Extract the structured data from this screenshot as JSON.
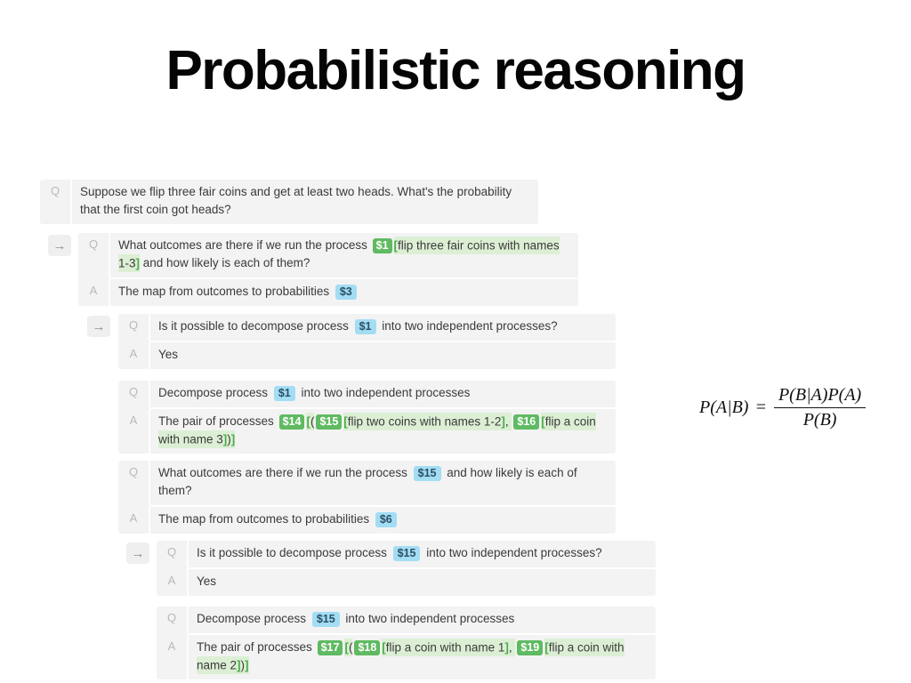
{
  "title": "Probabilistic reasoning",
  "arrow_icon": "→",
  "colors": {
    "box_background": "#f3f3f3",
    "green_badge": "#5fba61",
    "green_highlight": "#dcefd4",
    "green_bracket": "#4cae4c",
    "blue_badge": "#a3ddf4",
    "blue_badge_text": "#2b5065"
  },
  "formula": {
    "lhs": "P(A|B)",
    "equals": "=",
    "numerator": "P(B|A)P(A)",
    "denominator": "P(B)"
  },
  "qa_boxes": [
    {
      "rows": [
        {
          "label": "Q",
          "segments": [
            {
              "k": "t",
              "x": "Suppose we flip three fair coins and get at least two heads. What's the probability that the first coin got heads?"
            }
          ]
        }
      ]
    },
    {
      "rows": [
        {
          "label": "Q",
          "segments": [
            {
              "k": "t",
              "x": "What outcomes are there if we run the process "
            },
            {
              "k": "g",
              "x": "$1"
            },
            {
              "k": "gb",
              "x": "["
            },
            {
              "k": "h",
              "x": "flip three fair coins with names 1-3"
            },
            {
              "k": "gb",
              "x": "]"
            },
            {
              "k": "t",
              "x": " and how likely is each of them?"
            }
          ]
        },
        {
          "label": "A",
          "segments": [
            {
              "k": "t",
              "x": "The map from outcomes to probabilities "
            },
            {
              "k": "b",
              "x": "$3"
            }
          ]
        }
      ]
    },
    {
      "rows": [
        {
          "label": "Q",
          "segments": [
            {
              "k": "t",
              "x": "Is it possible to decompose process "
            },
            {
              "k": "b",
              "x": "$1"
            },
            {
              "k": "t",
              "x": " into two independent processes?"
            }
          ]
        },
        {
          "label": "A",
          "segments": [
            {
              "k": "t",
              "x": "Yes"
            }
          ]
        }
      ]
    },
    {
      "rows": [
        {
          "label": "Q",
          "segments": [
            {
              "k": "t",
              "x": "Decompose process "
            },
            {
              "k": "b",
              "x": "$1"
            },
            {
              "k": "t",
              "x": " into two independent processes"
            }
          ]
        },
        {
          "label": "A",
          "segments": [
            {
              "k": "t",
              "x": "The pair of processes "
            },
            {
              "k": "g",
              "x": "$14"
            },
            {
              "k": "gb",
              "x": "["
            },
            {
              "k": "h",
              "x": "("
            },
            {
              "k": "g",
              "x": "$15"
            },
            {
              "k": "gb",
              "x": "["
            },
            {
              "k": "h",
              "x": "flip two coins with names 1-2"
            },
            {
              "k": "gb",
              "x": "]"
            },
            {
              "k": "h",
              "x": ", "
            },
            {
              "k": "g",
              "x": "$16"
            },
            {
              "k": "gb",
              "x": "["
            },
            {
              "k": "h",
              "x": "flip a coin with name 3"
            },
            {
              "k": "gb",
              "x": "]"
            },
            {
              "k": "h",
              "x": ")"
            },
            {
              "k": "gb",
              "x": "]"
            }
          ]
        }
      ]
    },
    {
      "rows": [
        {
          "label": "Q",
          "segments": [
            {
              "k": "t",
              "x": "What outcomes are there if we run the process "
            },
            {
              "k": "b",
              "x": "$15"
            },
            {
              "k": "t",
              "x": " and how likely is each of them?"
            }
          ]
        },
        {
          "label": "A",
          "segments": [
            {
              "k": "t",
              "x": "The map from outcomes to probabilities "
            },
            {
              "k": "b",
              "x": "$6"
            }
          ]
        }
      ]
    },
    {
      "rows": [
        {
          "label": "Q",
          "segments": [
            {
              "k": "t",
              "x": "Is it possible to decompose process "
            },
            {
              "k": "b",
              "x": "$15"
            },
            {
              "k": "t",
              "x": " into two independent processes?"
            }
          ]
        },
        {
          "label": "A",
          "segments": [
            {
              "k": "t",
              "x": "Yes"
            }
          ]
        }
      ]
    },
    {
      "rows": [
        {
          "label": "Q",
          "segments": [
            {
              "k": "t",
              "x": "Decompose process "
            },
            {
              "k": "b",
              "x": "$15"
            },
            {
              "k": "t",
              "x": " into two independent processes"
            }
          ]
        },
        {
          "label": "A",
          "segments": [
            {
              "k": "t",
              "x": "The pair of processes "
            },
            {
              "k": "g",
              "x": "$17"
            },
            {
              "k": "gb",
              "x": "["
            },
            {
              "k": "h",
              "x": "("
            },
            {
              "k": "g",
              "x": "$18"
            },
            {
              "k": "gb",
              "x": "["
            },
            {
              "k": "h",
              "x": "flip a coin with name 1"
            },
            {
              "k": "gb",
              "x": "]"
            },
            {
              "k": "h",
              "x": ", "
            },
            {
              "k": "g",
              "x": "$19"
            },
            {
              "k": "gb",
              "x": "["
            },
            {
              "k": "h",
              "x": "flip a coin with name 2"
            },
            {
              "k": "gb",
              "x": "]"
            },
            {
              "k": "h",
              "x": ")"
            },
            {
              "k": "gb",
              "x": "]"
            }
          ]
        }
      ]
    }
  ]
}
